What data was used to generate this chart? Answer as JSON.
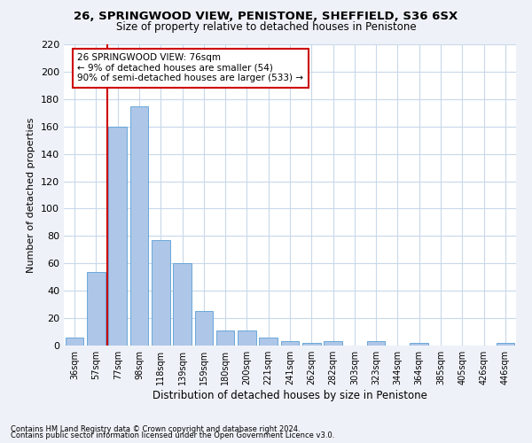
{
  "title": "26, SPRINGWOOD VIEW, PENISTONE, SHEFFIELD, S36 6SX",
  "subtitle": "Size of property relative to detached houses in Penistone",
  "xlabel": "Distribution of detached houses by size in Penistone",
  "ylabel": "Number of detached properties",
  "bar_color": "#aec6e8",
  "bar_edge_color": "#5a9fd4",
  "categories": [
    "36sqm",
    "57sqm",
    "77sqm",
    "98sqm",
    "118sqm",
    "139sqm",
    "159sqm",
    "180sqm",
    "200sqm",
    "221sqm",
    "241sqm",
    "262sqm",
    "282sqm",
    "303sqm",
    "323sqm",
    "344sqm",
    "364sqm",
    "385sqm",
    "405sqm",
    "426sqm",
    "446sqm"
  ],
  "values": [
    6,
    54,
    160,
    175,
    77,
    60,
    25,
    11,
    11,
    6,
    3,
    2,
    3,
    0,
    3,
    0,
    2,
    0,
    0,
    0,
    2
  ],
  "ylim": [
    0,
    220
  ],
  "yticks": [
    0,
    20,
    40,
    60,
    80,
    100,
    120,
    140,
    160,
    180,
    200,
    220
  ],
  "annotation_title": "26 SPRINGWOOD VIEW: 76sqm",
  "annotation_line1": "← 9% of detached houses are smaller (54)",
  "annotation_line2": "90% of semi-detached houses are larger (533) →",
  "footer1": "Contains HM Land Registry data © Crown copyright and database right 2024.",
  "footer2": "Contains public sector information licensed under the Open Government Licence v3.0.",
  "background_color": "#eef2f8",
  "plot_bg_color": "#ffffff",
  "grid_color": "#c8d8ea",
  "vline_color": "#cc0000",
  "annotation_box_color": "#cc0000"
}
